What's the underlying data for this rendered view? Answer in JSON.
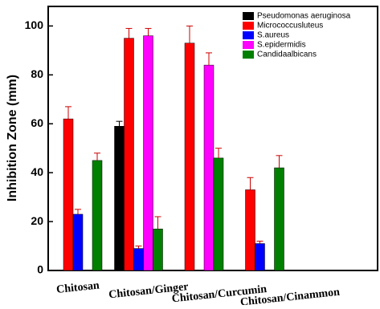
{
  "chart_data": {
    "type": "bar",
    "y_label": "Inhibition Zone (mm)",
    "categories": [
      "Chitosan",
      "Chitosan/Ginger",
      "Chitosan/Curcumin",
      "Chitosan/Cinammon"
    ],
    "series": [
      {
        "name": "Pseudomonas aeruginosa",
        "color": "#000000",
        "values": [
          null,
          59,
          null,
          null
        ],
        "errors": [
          null,
          2,
          null,
          null
        ]
      },
      {
        "name": "Micrococcusluteus",
        "color": "#ff0000",
        "values": [
          62,
          95,
          93,
          33
        ],
        "errors": [
          5,
          4,
          7,
          5
        ]
      },
      {
        "name": "S.aureus",
        "color": "#0000ff",
        "values": [
          23,
          9,
          null,
          11
        ],
        "errors": [
          2,
          1,
          null,
          1
        ]
      },
      {
        "name": "S.epidermidis",
        "color": "#ff00ff",
        "values": [
          null,
          96,
          84,
          null
        ],
        "errors": [
          null,
          3,
          5,
          null
        ]
      },
      {
        "name": "Candidaalbicans",
        "color": "#008000",
        "values": [
          45,
          17,
          46,
          42
        ],
        "errors": [
          3,
          5,
          4,
          5
        ]
      }
    ],
    "ylim": [
      0,
      108
    ],
    "yticks": [
      0,
      20,
      40,
      60,
      80,
      100
    ],
    "legend": "upper-right"
  }
}
